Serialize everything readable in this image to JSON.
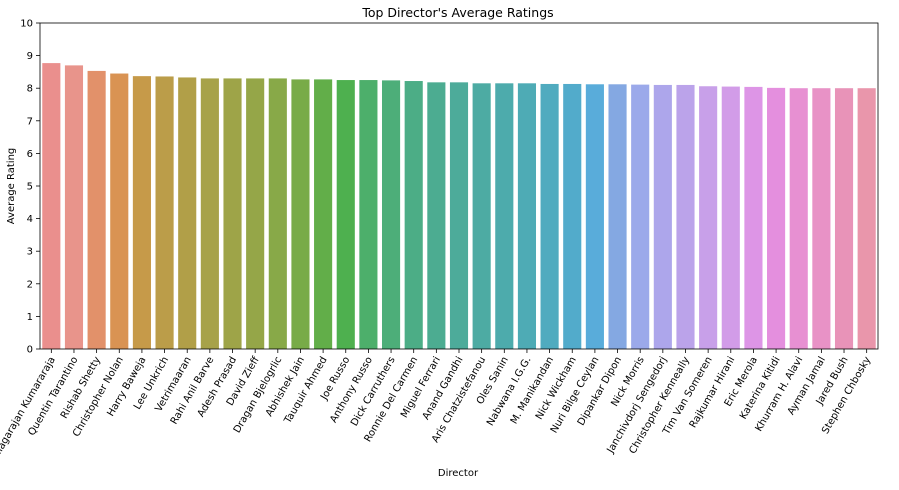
{
  "chart_data": {
    "type": "bar",
    "title": "Top Director's Average Ratings",
    "xlabel": "Director",
    "ylabel": "Average Rating",
    "ylim": [
      0,
      10
    ],
    "yticks": [
      "0",
      "1",
      "2",
      "3",
      "4",
      "5",
      "6",
      "7",
      "8",
      "9",
      "10"
    ],
    "grid": false,
    "categories": [
      "Thiagarajan Kumararaja",
      "Quentin Tarantino",
      "Rishab Shetty",
      "Christopher Nolan",
      "Harry Baweja",
      "Lee Unkrich",
      "Vetrimaaran",
      "Rahi Anil Barve",
      "Adesh Prasad",
      "David Zieff",
      "Dragan Bjelogrlic",
      "Abhishek Jain",
      "Tauquir Ahmed",
      "Joe Russo",
      "Anthony Russo",
      "Dick Carruthers",
      "Ronnie Del Carmen",
      "Miguel Ferrari",
      "Anand Gandhi",
      "Aris Chatzistefanou",
      "Oles Sanin",
      "Nabwana I.G.G.",
      "M. Manikandan",
      "Nick Wickham",
      "Nuri Bilge Ceylan",
      "Dipankar Dipon",
      "Nick Morris",
      "Janchivdorj Sengedorj",
      "Christopher Kenneally",
      "Tim Van Someren",
      "Rajkumar Hirani",
      "Eric Merola",
      "Katerina Kitidi",
      "Khurram H. Alavi",
      "Ayman Jamal",
      "Jared Bush",
      "Stephen Chbosky"
    ],
    "values": [
      8.77,
      8.7,
      8.53,
      8.45,
      8.37,
      8.36,
      8.33,
      8.3,
      8.3,
      8.3,
      8.3,
      8.27,
      8.27,
      8.25,
      8.25,
      8.24,
      8.22,
      8.18,
      8.18,
      8.15,
      8.15,
      8.15,
      8.13,
      8.13,
      8.12,
      8.12,
      8.11,
      8.1,
      8.1,
      8.06,
      8.05,
      8.04,
      8.01,
      8.0,
      8.0,
      8.0,
      8.0
    ],
    "colors": [
      "#ea8f8d",
      "#e8948b",
      "#e2916a",
      "#d99353",
      "#c69a49",
      "#bb9d49",
      "#b19f48",
      "#a7a249",
      "#9ea448",
      "#95a648",
      "#88a948",
      "#78ab48",
      "#62ae49",
      "#4eb04f",
      "#4daf6b",
      "#4dae79",
      "#4cad86",
      "#4cac91",
      "#4dab9a",
      "#4daba3",
      "#4dabac",
      "#4eabb5",
      "#50abbf",
      "#52abcb",
      "#59acda",
      "#84a8e2",
      "#9ba9ea",
      "#ada6eb",
      "#bba3ea",
      "#c8a0e9",
      "#d29ce8",
      "#dd95e6",
      "#e48fde",
      "#e790d2",
      "#e892c6",
      "#e893b8",
      "#e996ab"
    ]
  }
}
